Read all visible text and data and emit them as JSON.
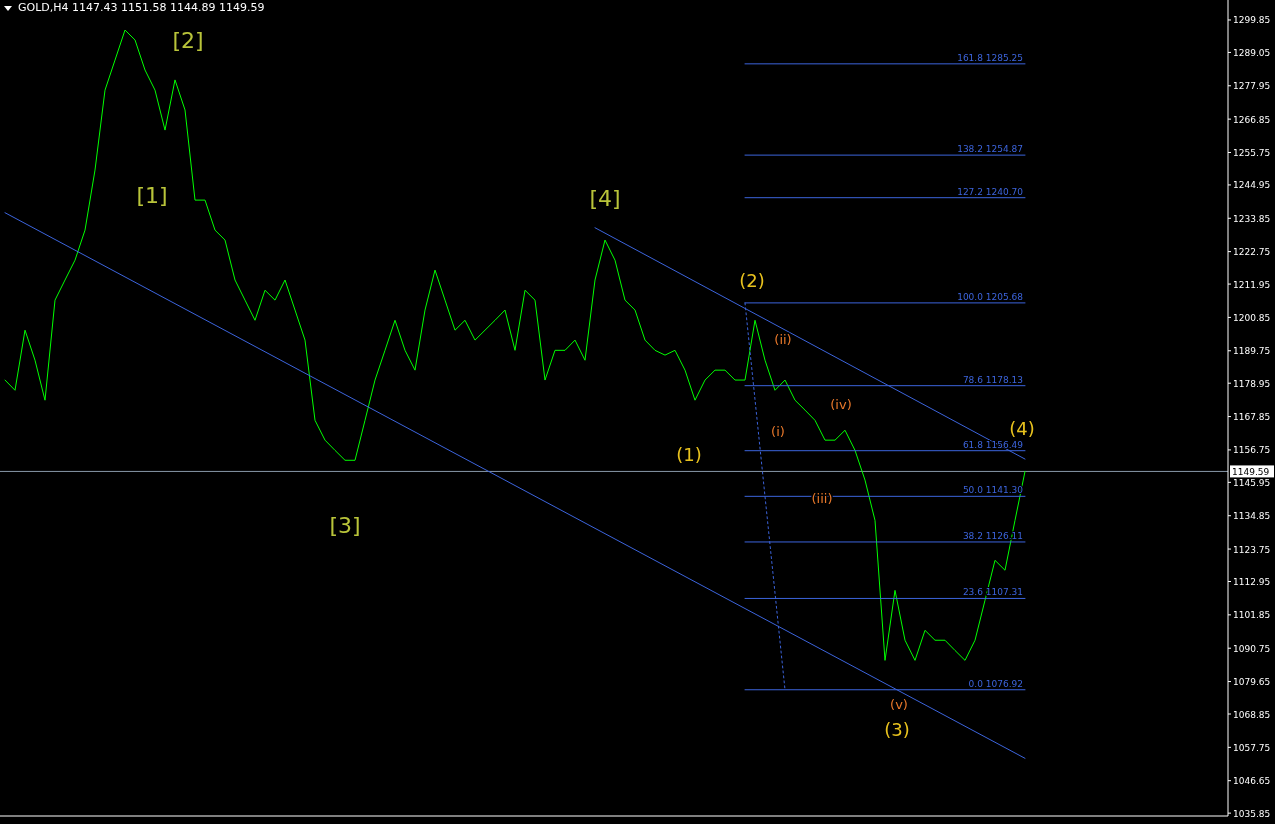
{
  "chart_data": {
    "type": "line",
    "title": "GOLD,H4 1147.43 1151.58 1144.89 1149.59",
    "categories": [
      null,
      null,
      null,
      null,
      null,
      null,
      null,
      null,
      null,
      null,
      null,
      null,
      null,
      null,
      null,
      null,
      null,
      null,
      null,
      null,
      null,
      null,
      null,
      null,
      null,
      null,
      null,
      null,
      null,
      null,
      null,
      null,
      null,
      null,
      null,
      null,
      null,
      null,
      null,
      null,
      null,
      null,
      null,
      null,
      null,
      null,
      null,
      null,
      null,
      null,
      null,
      null,
      null,
      null,
      null,
      null,
      null,
      null,
      null,
      null,
      null,
      null,
      null,
      null,
      null,
      null,
      null,
      null,
      null,
      null,
      null,
      null,
      null,
      null,
      null,
      null,
      null,
      null,
      null,
      null,
      null,
      null,
      null,
      null,
      null,
      null,
      null,
      null,
      null,
      null,
      null,
      null,
      null,
      null,
      null,
      null,
      null,
      null,
      null,
      null,
      null,
      null,
      null
    ],
    "ylim": [
      1034.9,
      1306.5
    ],
    "yticks": [
      1299.85,
      1289.05,
      1277.95,
      1266.85,
      1255.75,
      1244.95,
      1233.85,
      1222.75,
      1211.95,
      1200.85,
      1189.75,
      1178.95,
      1167.85,
      1156.75,
      1145.95,
      1134.85,
      1123.75,
      1112.95,
      1101.85,
      1090.75,
      1079.65,
      1068.85,
      1057.75,
      1046.65,
      1035.85
    ],
    "tick_labels": "y",
    "grid": false,
    "legend": false,
    "series": [
      {
        "color": "#00ff00",
        "values": [
          1180.0,
          1176.6,
          1196.6,
          1186.6,
          1173.3,
          1206.6,
          1213.3,
          1219.9,
          1229.9,
          1249.9,
          1276.5,
          1286.5,
          1296.5,
          1293.2,
          1283.2,
          1276.5,
          1263.2,
          1279.9,
          1269.9,
          1239.9,
          1239.9,
          1229.9,
          1226.6,
          1213.3,
          1206.6,
          1199.9,
          1209.9,
          1206.6,
          1213.3,
          1203.3,
          1193.3,
          1166.6,
          1160.0,
          1156.6,
          1153.3,
          1153.3,
          1166.6,
          1180.0,
          1189.9,
          1199.9,
          1189.9,
          1183.3,
          1203.3,
          1216.6,
          1206.6,
          1196.6,
          1199.9,
          1193.3,
          1196.6,
          1199.9,
          1203.3,
          1189.9,
          1209.9,
          1206.6,
          1180.0,
          1189.9,
          1189.9,
          1193.3,
          1186.6,
          1213.3,
          1226.6,
          1219.9,
          1206.6,
          1203.3,
          1193.3,
          1189.9,
          1188.3,
          1189.9,
          1183.3,
          1173.3,
          1180.0,
          1183.3,
          1183.3,
          1180.0,
          1180.0,
          1199.9,
          1186.6,
          1176.6,
          1180.0,
          1173.3,
          1170.0,
          1166.6,
          1160.0,
          1160.0,
          1163.3,
          1156.6,
          1146.7,
          1133.3,
          1086.7,
          1110.0,
          1093.4,
          1086.7,
          1096.7,
          1093.4,
          1093.4,
          1090.0,
          1086.7,
          1093.4,
          1106.7,
          1120.0,
          1116.7,
          1133.3,
          1149.59
        ]
      },
      {
        "color": "#3c64dc",
        "values": [
          1235.7,
          null,
          null,
          null,
          null,
          null,
          null,
          null,
          null,
          null,
          null,
          null,
          null,
          null,
          null,
          null,
          null,
          null,
          null,
          null,
          null,
          null,
          null,
          null,
          null,
          null,
          null,
          null,
          null,
          null,
          null,
          null,
          null,
          null,
          null,
          null,
          null,
          null,
          null,
          null,
          null,
          null,
          null,
          null,
          null,
          null,
          null,
          null,
          null,
          null,
          null,
          null,
          null,
          null,
          null,
          null,
          null,
          null,
          null,
          null,
          null,
          null,
          null,
          null,
          null,
          null,
          null,
          null,
          null,
          null,
          null,
          null,
          null,
          null,
          null,
          null,
          null,
          null,
          null,
          null,
          null,
          null,
          null,
          null,
          null,
          null,
          null,
          null,
          null,
          null,
          null,
          null,
          null,
          null,
          null,
          null,
          null,
          null,
          null,
          null,
          null,
          null,
          1054.1
        ]
      },
      {
        "color": "#3c64dc",
        "values": [
          null,
          null,
          null,
          null,
          null,
          null,
          null,
          null,
          null,
          null,
          null,
          null,
          null,
          null,
          null,
          null,
          null,
          null,
          null,
          null,
          null,
          null,
          null,
          null,
          null,
          null,
          null,
          null,
          null,
          null,
          null,
          null,
          null,
          null,
          null,
          null,
          null,
          null,
          null,
          null,
          null,
          null,
          null,
          null,
          null,
          null,
          null,
          null,
          null,
          null,
          null,
          null,
          null,
          null,
          null,
          null,
          null,
          null,
          null,
          1230.7,
          null,
          null,
          null,
          null,
          null,
          null,
          null,
          null,
          null,
          null,
          null,
          null,
          null,
          null,
          null,
          null,
          null,
          null,
          null,
          null,
          null,
          null,
          null,
          null,
          null,
          null,
          null,
          null,
          null,
          null,
          null,
          null,
          null,
          null,
          null,
          null,
          null,
          null,
          null,
          null,
          null,
          null,
          1153.7
        ]
      },
      {
        "color": "#3c64dc",
        "line_style": "dotted",
        "values": [
          null,
          null,
          null,
          null,
          null,
          null,
          null,
          null,
          null,
          null,
          null,
          null,
          null,
          null,
          null,
          null,
          null,
          null,
          null,
          null,
          null,
          null,
          null,
          null,
          null,
          null,
          null,
          null,
          null,
          null,
          null,
          null,
          null,
          null,
          null,
          null,
          null,
          null,
          null,
          null,
          null,
          null,
          null,
          null,
          null,
          null,
          null,
          null,
          null,
          null,
          null,
          null,
          null,
          null,
          null,
          null,
          null,
          null,
          null,
          null,
          null,
          null,
          null,
          null,
          null,
          null,
          null,
          null,
          null,
          null,
          null,
          null,
          null,
          null,
          1205.68,
          null,
          null,
          null,
          1076.92,
          null,
          null,
          null,
          null,
          null,
          null,
          null,
          null,
          null,
          null,
          null,
          null,
          null,
          null,
          null,
          null,
          null,
          null,
          null,
          null,
          null,
          null,
          null,
          null
        ]
      },
      {
        "name": "161.8 1285.25",
        "color": "#3c64dc",
        "values": [
          null,
          null,
          null,
          null,
          null,
          null,
          null,
          null,
          null,
          null,
          null,
          null,
          null,
          null,
          null,
          null,
          null,
          null,
          null,
          null,
          null,
          null,
          null,
          null,
          null,
          null,
          null,
          null,
          null,
          null,
          null,
          null,
          null,
          null,
          null,
          null,
          null,
          null,
          null,
          null,
          null,
          null,
          null,
          null,
          null,
          null,
          null,
          null,
          null,
          null,
          null,
          null,
          null,
          null,
          null,
          null,
          null,
          null,
          null,
          null,
          null,
          null,
          null,
          null,
          null,
          null,
          null,
          null,
          null,
          null,
          null,
          null,
          null,
          null,
          1285.25,
          null,
          null,
          null,
          null,
          null,
          null,
          null,
          null,
          null,
          null,
          null,
          null,
          null,
          null,
          null,
          null,
          null,
          null,
          null,
          null,
          null,
          null,
          null,
          null,
          null,
          null,
          null,
          1285.25
        ]
      },
      {
        "name": "138.2 1254.87",
        "color": "#3c64dc",
        "values": [
          null,
          null,
          null,
          null,
          null,
          null,
          null,
          null,
          null,
          null,
          null,
          null,
          null,
          null,
          null,
          null,
          null,
          null,
          null,
          null,
          null,
          null,
          null,
          null,
          null,
          null,
          null,
          null,
          null,
          null,
          null,
          null,
          null,
          null,
          null,
          null,
          null,
          null,
          null,
          null,
          null,
          null,
          null,
          null,
          null,
          null,
          null,
          null,
          null,
          null,
          null,
          null,
          null,
          null,
          null,
          null,
          null,
          null,
          null,
          null,
          null,
          null,
          null,
          null,
          null,
          null,
          null,
          null,
          null,
          null,
          null,
          null,
          null,
          null,
          1254.87,
          null,
          null,
          null,
          null,
          null,
          null,
          null,
          null,
          null,
          null,
          null,
          null,
          null,
          null,
          null,
          null,
          null,
          null,
          null,
          null,
          null,
          null,
          null,
          null,
          null,
          null,
          null,
          1254.87
        ]
      },
      {
        "name": "127.2 1240.70",
        "color": "#3c64dc",
        "values": [
          null,
          null,
          null,
          null,
          null,
          null,
          null,
          null,
          null,
          null,
          null,
          null,
          null,
          null,
          null,
          null,
          null,
          null,
          null,
          null,
          null,
          null,
          null,
          null,
          null,
          null,
          null,
          null,
          null,
          null,
          null,
          null,
          null,
          null,
          null,
          null,
          null,
          null,
          null,
          null,
          null,
          null,
          null,
          null,
          null,
          null,
          null,
          null,
          null,
          null,
          null,
          null,
          null,
          null,
          null,
          null,
          null,
          null,
          null,
          null,
          null,
          null,
          null,
          null,
          null,
          null,
          null,
          null,
          null,
          null,
          null,
          null,
          null,
          null,
          1240.7,
          null,
          null,
          null,
          null,
          null,
          null,
          null,
          null,
          null,
          null,
          null,
          null,
          null,
          null,
          null,
          null,
          null,
          null,
          null,
          null,
          null,
          null,
          null,
          null,
          null,
          null,
          null,
          1240.7
        ]
      },
      {
        "name": "100.0 1205.68",
        "color": "#3c64dc",
        "values": [
          null,
          null,
          null,
          null,
          null,
          null,
          null,
          null,
          null,
          null,
          null,
          null,
          null,
          null,
          null,
          null,
          null,
          null,
          null,
          null,
          null,
          null,
          null,
          null,
          null,
          null,
          null,
          null,
          null,
          null,
          null,
          null,
          null,
          null,
          null,
          null,
          null,
          null,
          null,
          null,
          null,
          null,
          null,
          null,
          null,
          null,
          null,
          null,
          null,
          null,
          null,
          null,
          null,
          null,
          null,
          null,
          null,
          null,
          null,
          null,
          null,
          null,
          null,
          null,
          null,
          null,
          null,
          null,
          null,
          null,
          null,
          null,
          null,
          null,
          1205.68,
          null,
          null,
          null,
          null,
          null,
          null,
          null,
          null,
          null,
          null,
          null,
          null,
          null,
          null,
          null,
          null,
          null,
          null,
          null,
          null,
          null,
          null,
          null,
          null,
          null,
          null,
          null,
          1205.68
        ]
      },
      {
        "name": "78.6 1178.13",
        "color": "#3c64dc",
        "values": [
          null,
          null,
          null,
          null,
          null,
          null,
          null,
          null,
          null,
          null,
          null,
          null,
          null,
          null,
          null,
          null,
          null,
          null,
          null,
          null,
          null,
          null,
          null,
          null,
          null,
          null,
          null,
          null,
          null,
          null,
          null,
          null,
          null,
          null,
          null,
          null,
          null,
          null,
          null,
          null,
          null,
          null,
          null,
          null,
          null,
          null,
          null,
          null,
          null,
          null,
          null,
          null,
          null,
          null,
          null,
          null,
          null,
          null,
          null,
          null,
          null,
          null,
          null,
          null,
          null,
          null,
          null,
          null,
          null,
          null,
          null,
          null,
          null,
          null,
          1178.13,
          null,
          null,
          null,
          null,
          null,
          null,
          null,
          null,
          null,
          null,
          null,
          null,
          null,
          null,
          null,
          null,
          null,
          null,
          null,
          null,
          null,
          null,
          null,
          null,
          null,
          null,
          null,
          1178.13
        ]
      },
      {
        "name": "61.8 1156.49",
        "color": "#3c64dc",
        "values": [
          null,
          null,
          null,
          null,
          null,
          null,
          null,
          null,
          null,
          null,
          null,
          null,
          null,
          null,
          null,
          null,
          null,
          null,
          null,
          null,
          null,
          null,
          null,
          null,
          null,
          null,
          null,
          null,
          null,
          null,
          null,
          null,
          null,
          null,
          null,
          null,
          null,
          null,
          null,
          null,
          null,
          null,
          null,
          null,
          null,
          null,
          null,
          null,
          null,
          null,
          null,
          null,
          null,
          null,
          null,
          null,
          null,
          null,
          null,
          null,
          null,
          null,
          null,
          null,
          null,
          null,
          null,
          null,
          null,
          null,
          null,
          null,
          null,
          null,
          1156.49,
          null,
          null,
          null,
          null,
          null,
          null,
          null,
          null,
          null,
          null,
          null,
          null,
          null,
          null,
          null,
          null,
          null,
          null,
          null,
          null,
          null,
          null,
          null,
          null,
          null,
          null,
          null,
          1156.49
        ]
      },
      {
        "name": "50.0 1141.30",
        "color": "#3c64dc",
        "values": [
          null,
          null,
          null,
          null,
          null,
          null,
          null,
          null,
          null,
          null,
          null,
          null,
          null,
          null,
          null,
          null,
          null,
          null,
          null,
          null,
          null,
          null,
          null,
          null,
          null,
          null,
          null,
          null,
          null,
          null,
          null,
          null,
          null,
          null,
          null,
          null,
          null,
          null,
          null,
          null,
          null,
          null,
          null,
          null,
          null,
          null,
          null,
          null,
          null,
          null,
          null,
          null,
          null,
          null,
          null,
          null,
          null,
          null,
          null,
          null,
          null,
          null,
          null,
          null,
          null,
          null,
          null,
          null,
          null,
          null,
          null,
          null,
          null,
          null,
          1141.3,
          null,
          null,
          null,
          null,
          null,
          null,
          null,
          null,
          null,
          null,
          null,
          null,
          null,
          null,
          null,
          null,
          null,
          null,
          null,
          null,
          null,
          null,
          null,
          null,
          null,
          null,
          null,
          1141.3
        ]
      },
      {
        "name": "38.2 1126.11",
        "color": "#3c64dc",
        "values": [
          null,
          null,
          null,
          null,
          null,
          null,
          null,
          null,
          null,
          null,
          null,
          null,
          null,
          null,
          null,
          null,
          null,
          null,
          null,
          null,
          null,
          null,
          null,
          null,
          null,
          null,
          null,
          null,
          null,
          null,
          null,
          null,
          null,
          null,
          null,
          null,
          null,
          null,
          null,
          null,
          null,
          null,
          null,
          null,
          null,
          null,
          null,
          null,
          null,
          null,
          null,
          null,
          null,
          null,
          null,
          null,
          null,
          null,
          null,
          null,
          null,
          null,
          null,
          null,
          null,
          null,
          null,
          null,
          null,
          null,
          null,
          null,
          null,
          null,
          1126.11,
          null,
          null,
          null,
          null,
          null,
          null,
          null,
          null,
          null,
          null,
          null,
          null,
          null,
          null,
          null,
          null,
          null,
          null,
          null,
          null,
          null,
          null,
          null,
          null,
          null,
          null,
          null,
          1126.11
        ]
      },
      {
        "name": "23.6 1107.31",
        "color": "#3c64dc",
        "values": [
          null,
          null,
          null,
          null,
          null,
          null,
          null,
          null,
          null,
          null,
          null,
          null,
          null,
          null,
          null,
          null,
          null,
          null,
          null,
          null,
          null,
          null,
          null,
          null,
          null,
          null,
          null,
          null,
          null,
          null,
          null,
          null,
          null,
          null,
          null,
          null,
          null,
          null,
          null,
          null,
          null,
          null,
          null,
          null,
          null,
          null,
          null,
          null,
          null,
          null,
          null,
          null,
          null,
          null,
          null,
          null,
          null,
          null,
          null,
          null,
          null,
          null,
          null,
          null,
          null,
          null,
          null,
          null,
          null,
          null,
          null,
          null,
          null,
          null,
          1107.31,
          null,
          null,
          null,
          null,
          null,
          null,
          null,
          null,
          null,
          null,
          null,
          null,
          null,
          null,
          null,
          null,
          null,
          null,
          null,
          null,
          null,
          null,
          null,
          null,
          null,
          null,
          null,
          1107.31
        ]
      },
      {
        "name": "0.0 1076.92",
        "color": "#3c64dc",
        "values": [
          null,
          null,
          null,
          null,
          null,
          null,
          null,
          null,
          null,
          null,
          null,
          null,
          null,
          null,
          null,
          null,
          null,
          null,
          null,
          null,
          null,
          null,
          null,
          null,
          null,
          null,
          null,
          null,
          null,
          null,
          null,
          null,
          null,
          null,
          null,
          null,
          null,
          null,
          null,
          null,
          null,
          null,
          null,
          null,
          null,
          null,
          null,
          null,
          null,
          null,
          null,
          null,
          null,
          null,
          null,
          null,
          null,
          null,
          null,
          null,
          null,
          null,
          null,
          null,
          null,
          null,
          null,
          null,
          null,
          null,
          null,
          null,
          null,
          null,
          1076.92,
          null,
          null,
          null,
          null,
          null,
          null,
          null,
          null,
          null,
          null,
          null,
          null,
          null,
          null,
          null,
          null,
          null,
          null,
          null,
          null,
          null,
          null,
          null,
          null,
          null,
          null,
          null,
          1076.92
        ]
      }
    ],
    "ref_lines": [
      {
        "axis": "y",
        "value": 1149.59,
        "label": "1149.59",
        "color": "#8898a8"
      }
    ],
    "annotations": [
      "[2]",
      "[1]",
      "[3]",
      "[4]",
      "(1)",
      "(2)",
      "(3)",
      "(4)",
      "(i)",
      "(ii)",
      "(iii)",
      "(iv)",
      "(v)"
    ]
  }
}
